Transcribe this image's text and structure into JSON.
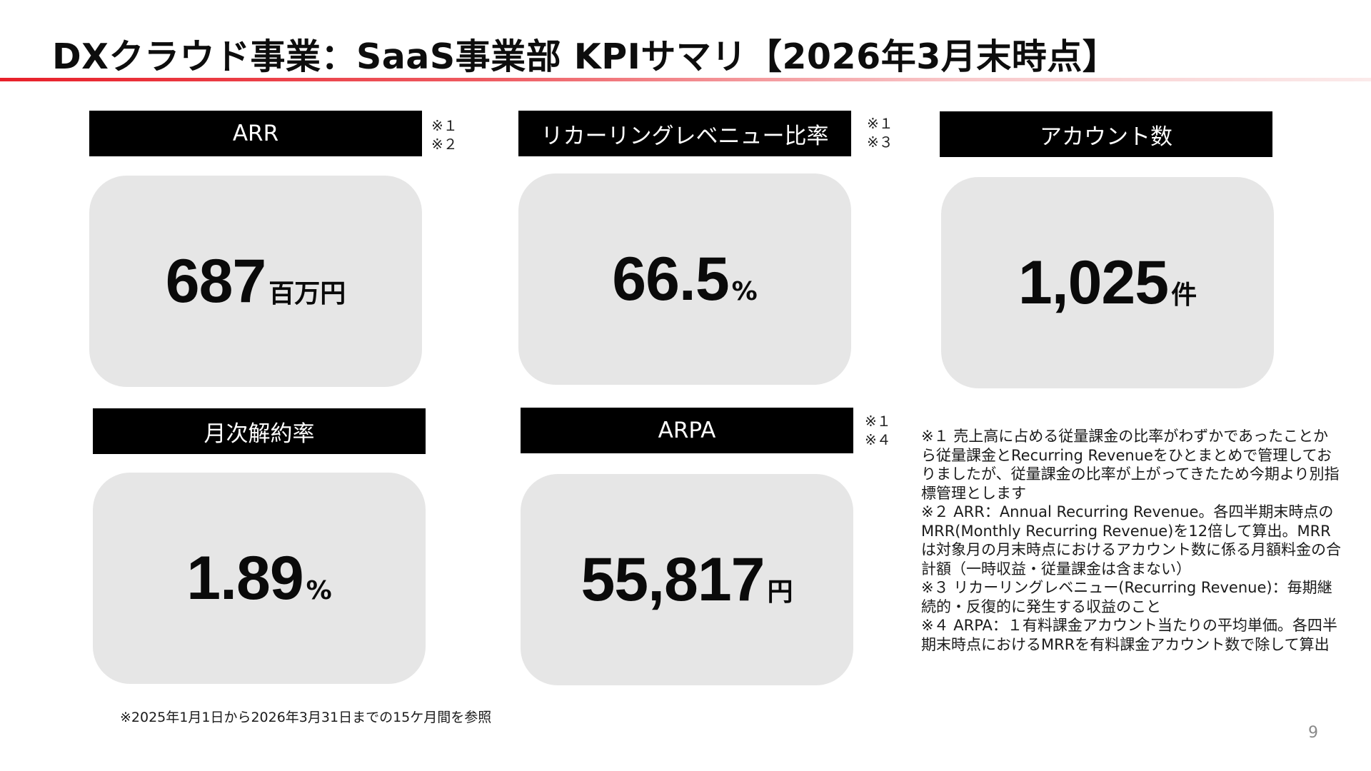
{
  "title": "DXクラウド事業：SaaS事業部 KPIサマリ【2026年3月末時点】",
  "kpis": [
    {
      "label": "ARR",
      "notes": [
        "※１",
        "※２"
      ],
      "value": "687",
      "unit": "百万円"
    },
    {
      "label": "リカーリングレベニュー比率",
      "notes": [
        "※１",
        "※３"
      ],
      "value": "66.5",
      "unit": "%"
    },
    {
      "label": "アカウント数",
      "notes": [],
      "value": "1,025",
      "unit": "件"
    },
    {
      "label": "月次解約率",
      "notes": [],
      "value": "1.89",
      "unit": "%"
    },
    {
      "label": "ARPA",
      "notes": [
        "※１",
        "※４"
      ],
      "value": "55,817",
      "unit": "円"
    }
  ],
  "footnotes": [
    "※１ 売上高に占める従量課金の比率がわずかであったことから従量課金とRecurring Revenueをひとまとめで管理しておりましたが、従量課金の比率が上がってきたため今期より別指標管理とします",
    "※２ ARR：Annual Recurring Revenue。各四半期末時点のMRR(Monthly Recurring Revenue)を12倍して算出。MRRは対象月の月末時点におけるアカウント数に係る月額料金の合計額（一時収益・従量課金は含まない）",
    "※３ リカーリングレベニュー(Recurring Revenue)：毎期継続的・反復的に発生する収益のこと",
    "※４ ARPA：１有料課金アカウント当たりの平均単価。各四半期末時点におけるMRRを有料課金アカウント数で除して算出"
  ],
  "source_note": "※2025年1月1日から2026年3月31日までの15ケ月間を参照",
  "page_number": "9",
  "colors": {
    "accent": "#e8202a",
    "label_bg": "#000000",
    "card_bg": "#e6e6e6"
  }
}
